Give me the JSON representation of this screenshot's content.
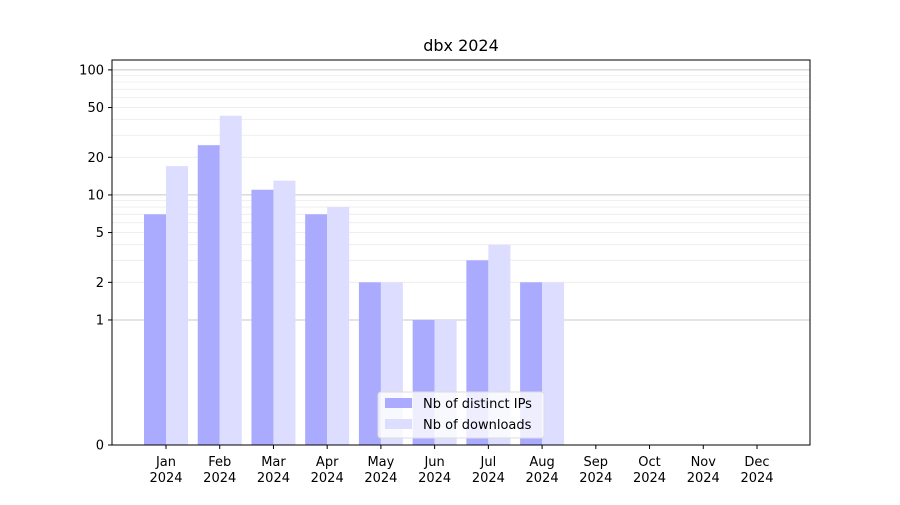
{
  "chart_data": {
    "type": "bar",
    "title": "dbx 2024",
    "xlabel": "",
    "ylabel": "",
    "yscale": "symlog",
    "ylim": [
      0,
      120
    ],
    "categories": [
      [
        "Jan",
        "2024"
      ],
      [
        "Feb",
        "2024"
      ],
      [
        "Mar",
        "2024"
      ],
      [
        "Apr",
        "2024"
      ],
      [
        "May",
        "2024"
      ],
      [
        "Jun",
        "2024"
      ],
      [
        "Jul",
        "2024"
      ],
      [
        "Aug",
        "2024"
      ],
      [
        "Sep",
        "2024"
      ],
      [
        "Oct",
        "2024"
      ],
      [
        "Nov",
        "2024"
      ],
      [
        "Dec",
        "2024"
      ]
    ],
    "yticks": [
      0,
      1,
      2,
      5,
      10,
      20,
      50,
      100
    ],
    "ytick_labels": [
      "0",
      "1",
      "2",
      "5",
      "10",
      "20",
      "50",
      "100"
    ],
    "series": [
      {
        "name": "Nb of distinct IPs",
        "color": "#aaaaff",
        "values": [
          7,
          25,
          11,
          7,
          2,
          1,
          3,
          2,
          0,
          0,
          0,
          0
        ]
      },
      {
        "name": "Nb of downloads",
        "color": "#ddddff",
        "values": [
          17,
          43,
          13,
          8,
          2,
          1,
          4,
          2,
          0,
          0,
          0,
          0
        ]
      }
    ],
    "grid": true,
    "legend_position": "lower-center"
  }
}
